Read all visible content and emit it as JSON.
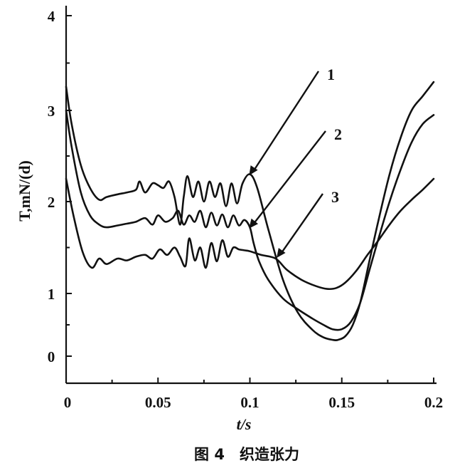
{
  "chart_data": {
    "type": "line",
    "title": "",
    "caption": "图 4　织造张力",
    "xlabel": "t/s",
    "ylabel": "T,mN/(d)",
    "xlim": [
      0,
      0.2
    ],
    "ylim": [
      -0.2,
      4.2
    ],
    "x_ticks": [
      0,
      0.05,
      0.1,
      0.15,
      0.2
    ],
    "x_tick_labels": [
      "0",
      "0.05",
      "0.1",
      "0.15",
      "0.2"
    ],
    "y_ticks": [
      0,
      1,
      2,
      3,
      4
    ],
    "y_tick_labels": [
      "0",
      "1",
      "2",
      "3",
      "4"
    ],
    "grid": false,
    "legend": "none",
    "series": [
      {
        "name": "1",
        "x": [
          0,
          0.003,
          0.008,
          0.013,
          0.018,
          0.022,
          0.028,
          0.033,
          0.038,
          0.04,
          0.043,
          0.047,
          0.05,
          0.053,
          0.056,
          0.059,
          0.062,
          0.064,
          0.066,
          0.069,
          0.072,
          0.075,
          0.078,
          0.081,
          0.084,
          0.087,
          0.09,
          0.093,
          0.096,
          0.1,
          0.104,
          0.11,
          0.118,
          0.126,
          0.134,
          0.14,
          0.145,
          0.148,
          0.152,
          0.156,
          0.16,
          0.165,
          0.17,
          0.176,
          0.182,
          0.188,
          0.194,
          0.2
        ],
        "y": [
          3.25,
          2.85,
          2.4,
          2.15,
          2.02,
          2.05,
          2.08,
          2.1,
          2.13,
          2.22,
          2.1,
          2.2,
          2.18,
          2.15,
          2.22,
          2.05,
          1.75,
          2.05,
          2.28,
          2.05,
          2.22,
          2.0,
          2.22,
          2.05,
          2.2,
          1.95,
          2.2,
          1.98,
          2.2,
          2.3,
          2.15,
          1.7,
          1.15,
          0.7,
          0.42,
          0.3,
          0.26,
          0.26,
          0.32,
          0.5,
          0.85,
          1.35,
          1.8,
          2.3,
          2.7,
          3.0,
          3.15,
          3.3
        ]
      },
      {
        "name": "2",
        "x": [
          0,
          0.003,
          0.008,
          0.013,
          0.018,
          0.022,
          0.028,
          0.033,
          0.038,
          0.043,
          0.047,
          0.05,
          0.054,
          0.058,
          0.061,
          0.064,
          0.067,
          0.07,
          0.073,
          0.076,
          0.079,
          0.082,
          0.085,
          0.088,
          0.091,
          0.094,
          0.097,
          0.1,
          0.102,
          0.105,
          0.11,
          0.118,
          0.126,
          0.134,
          0.14,
          0.145,
          0.15,
          0.155,
          0.16,
          0.165,
          0.17,
          0.176,
          0.182,
          0.188,
          0.194,
          0.2
        ],
        "y": [
          3.0,
          2.6,
          2.1,
          1.85,
          1.75,
          1.72,
          1.74,
          1.76,
          1.78,
          1.82,
          1.75,
          1.85,
          1.78,
          1.82,
          1.9,
          1.75,
          1.85,
          1.78,
          1.9,
          1.72,
          1.88,
          1.74,
          1.86,
          1.72,
          1.85,
          1.74,
          1.8,
          1.72,
          1.55,
          1.35,
          1.15,
          0.92,
          0.75,
          0.6,
          0.5,
          0.43,
          0.43,
          0.55,
          0.85,
          1.25,
          1.6,
          2.0,
          2.35,
          2.65,
          2.85,
          2.95
        ]
      },
      {
        "name": "3",
        "x": [
          0,
          0.004,
          0.009,
          0.014,
          0.018,
          0.022,
          0.028,
          0.033,
          0.038,
          0.043,
          0.047,
          0.051,
          0.055,
          0.059,
          0.062,
          0.065,
          0.067,
          0.07,
          0.073,
          0.076,
          0.079,
          0.082,
          0.085,
          0.088,
          0.091,
          0.094,
          0.097,
          0.1,
          0.106,
          0.114,
          0.12,
          0.128,
          0.136,
          0.142,
          0.147,
          0.152,
          0.158,
          0.164,
          0.17,
          0.176,
          0.182,
          0.188,
          0.194,
          0.2
        ],
        "y": [
          2.25,
          1.85,
          1.45,
          1.28,
          1.38,
          1.32,
          1.38,
          1.36,
          1.4,
          1.42,
          1.38,
          1.48,
          1.42,
          1.5,
          1.4,
          1.3,
          1.6,
          1.36,
          1.5,
          1.28,
          1.55,
          1.35,
          1.58,
          1.4,
          1.5,
          1.48,
          1.47,
          1.46,
          1.42,
          1.38,
          1.26,
          1.15,
          1.08,
          1.05,
          1.06,
          1.12,
          1.25,
          1.42,
          1.58,
          1.75,
          1.9,
          2.02,
          2.13,
          2.25
        ]
      }
    ],
    "annotations": [
      {
        "label": "1",
        "target_x": 0.1,
        "target_y": 2.3
      },
      {
        "label": "2",
        "target_x": 0.1,
        "target_y": 1.72
      },
      {
        "label": "3",
        "target_x": 0.115,
        "target_y": 1.4
      }
    ]
  }
}
